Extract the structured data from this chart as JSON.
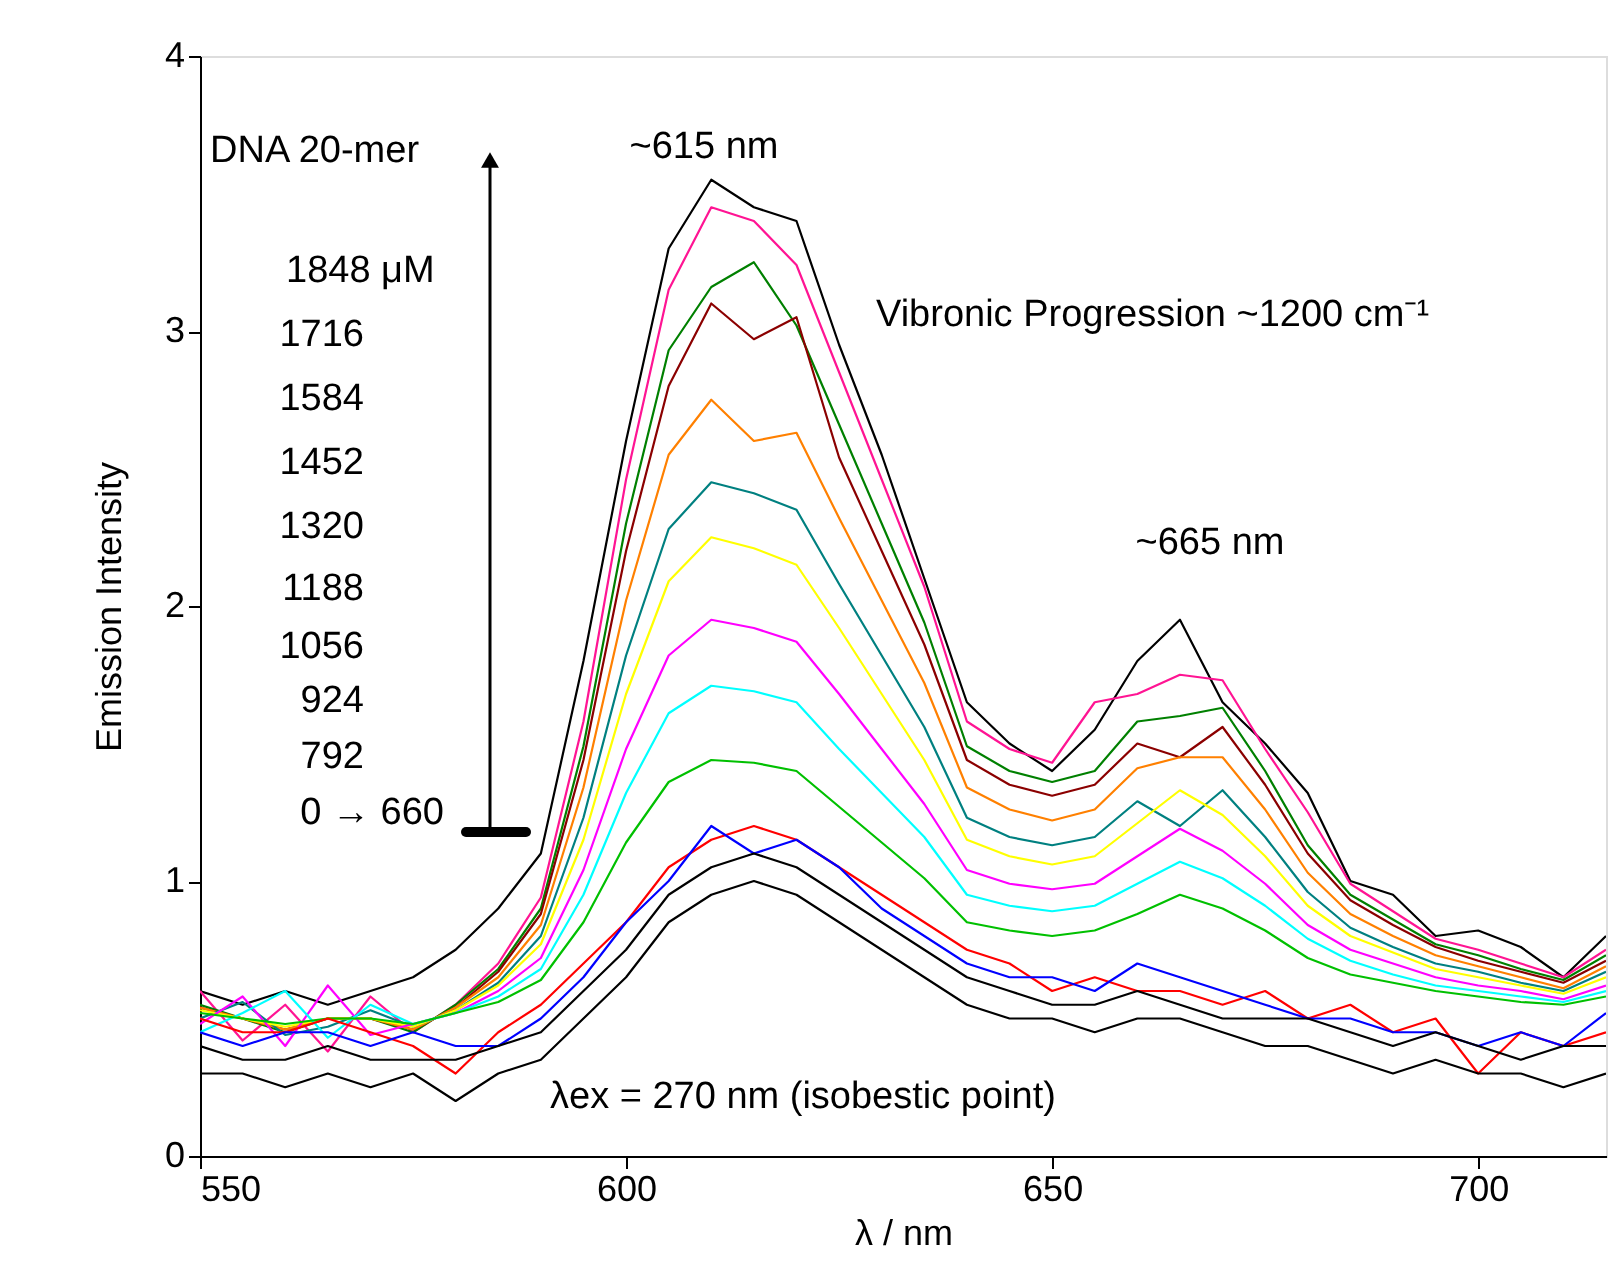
{
  "chart_data": {
    "type": "line",
    "xlabel": "λ / nm",
    "ylabel": "Emission Intensity",
    "xlim": [
      550,
      715
    ],
    "ylim": [
      0,
      4
    ],
    "xticks": [
      550,
      600,
      650,
      700
    ],
    "yticks": [
      0,
      1,
      2,
      3,
      4
    ],
    "grid": false,
    "x": [
      550,
      555,
      560,
      565,
      570,
      575,
      580,
      585,
      590,
      595,
      600,
      605,
      610,
      615,
      620,
      625,
      630,
      635,
      640,
      645,
      650,
      655,
      660,
      665,
      670,
      675,
      680,
      685,
      690,
      695,
      700,
      705,
      710,
      715
    ],
    "series": [
      {
        "color": "#000000",
        "values": [
          0.6,
          0.55,
          0.6,
          0.55,
          0.6,
          0.65,
          0.75,
          0.9,
          1.1,
          1.8,
          2.6,
          3.3,
          3.55,
          3.45,
          3.4,
          2.95,
          2.55,
          2.1,
          1.65,
          1.5,
          1.4,
          1.55,
          1.8,
          1.95,
          1.65,
          1.5,
          1.32,
          1.0,
          0.95,
          0.8,
          0.82,
          0.76,
          0.65,
          0.8
        ]
      },
      {
        "color": "#ff1493",
        "values": [
          0.6,
          0.42,
          0.55,
          0.38,
          0.58,
          0.45,
          0.55,
          0.7,
          0.94,
          1.58,
          2.46,
          3.15,
          3.45,
          3.4,
          3.24,
          2.85,
          2.46,
          2.07,
          1.58,
          1.48,
          1.43,
          1.65,
          1.68,
          1.75,
          1.73,
          1.48,
          1.25,
          0.99,
          0.89,
          0.79,
          0.75,
          0.7,
          0.65,
          0.75
        ]
      },
      {
        "color": "#008000",
        "values": [
          0.55,
          0.5,
          0.45,
          0.5,
          0.5,
          0.45,
          0.55,
          0.68,
          0.9,
          1.49,
          2.3,
          2.93,
          3.16,
          3.25,
          3.02,
          2.66,
          2.3,
          1.94,
          1.49,
          1.4,
          1.36,
          1.4,
          1.58,
          1.6,
          1.63,
          1.4,
          1.13,
          0.95,
          0.86,
          0.77,
          0.73,
          0.68,
          0.64,
          0.73
        ]
      },
      {
        "color": "#8b0000",
        "values": [
          0.54,
          0.5,
          0.46,
          0.5,
          0.5,
          0.46,
          0.54,
          0.67,
          0.88,
          1.44,
          2.2,
          2.8,
          3.1,
          2.97,
          3.05,
          2.54,
          2.2,
          1.86,
          1.44,
          1.35,
          1.31,
          1.35,
          1.5,
          1.45,
          1.56,
          1.35,
          1.1,
          0.93,
          0.84,
          0.76,
          0.71,
          0.67,
          0.63,
          0.71
        ]
      },
      {
        "color": "#ff8000",
        "values": [
          0.54,
          0.5,
          0.46,
          0.5,
          0.5,
          0.46,
          0.54,
          0.65,
          0.84,
          1.34,
          2.02,
          2.55,
          2.75,
          2.6,
          2.63,
          2.32,
          2.02,
          1.72,
          1.34,
          1.26,
          1.22,
          1.26,
          1.41,
          1.45,
          1.45,
          1.26,
          1.03,
          0.88,
          0.8,
          0.73,
          0.69,
          0.65,
          0.61,
          0.69
        ]
      },
      {
        "color": "#008080",
        "values": [
          0.5,
          0.56,
          0.44,
          0.47,
          0.53,
          0.47,
          0.53,
          0.63,
          0.8,
          1.23,
          1.82,
          2.28,
          2.45,
          2.41,
          2.35,
          2.08,
          1.82,
          1.56,
          1.23,
          1.16,
          1.13,
          1.16,
          1.29,
          1.2,
          1.33,
          1.16,
          0.96,
          0.83,
          0.76,
          0.7,
          0.67,
          0.63,
          0.6,
          0.67
        ]
      },
      {
        "color": "#ffff00",
        "values": [
          0.53,
          0.5,
          0.47,
          0.5,
          0.5,
          0.47,
          0.53,
          0.62,
          0.77,
          1.15,
          1.68,
          2.09,
          2.25,
          2.21,
          2.15,
          1.92,
          1.68,
          1.44,
          1.15,
          1.09,
          1.06,
          1.09,
          1.21,
          1.33,
          1.24,
          1.09,
          0.91,
          0.8,
          0.74,
          0.68,
          0.65,
          0.62,
          0.59,
          0.65
        ]
      },
      {
        "color": "#ff00ff",
        "values": [
          0.48,
          0.58,
          0.4,
          0.62,
          0.44,
          0.48,
          0.52,
          0.6,
          0.72,
          1.04,
          1.48,
          1.82,
          1.95,
          1.92,
          1.87,
          1.68,
          1.48,
          1.28,
          1.04,
          0.99,
          0.97,
          0.99,
          1.09,
          1.19,
          1.11,
          0.99,
          0.84,
          0.75,
          0.7,
          0.65,
          0.62,
          0.6,
          0.57,
          0.62
        ]
      },
      {
        "color": "#00ffff",
        "values": [
          0.45,
          0.52,
          0.6,
          0.43,
          0.55,
          0.48,
          0.52,
          0.58,
          0.68,
          0.95,
          1.32,
          1.61,
          1.71,
          1.69,
          1.65,
          1.48,
          1.32,
          1.16,
          0.95,
          0.91,
          0.89,
          0.91,
          0.99,
          1.07,
          1.01,
          0.91,
          0.79,
          0.71,
          0.66,
          0.62,
          0.6,
          0.58,
          0.56,
          0.6
        ]
      },
      {
        "color": "#00c000",
        "values": [
          0.52,
          0.5,
          0.48,
          0.5,
          0.5,
          0.48,
          0.52,
          0.56,
          0.64,
          0.85,
          1.14,
          1.36,
          1.44,
          1.43,
          1.4,
          1.27,
          1.14,
          1.01,
          0.85,
          0.82,
          0.8,
          0.82,
          0.88,
          0.95,
          0.9,
          0.82,
          0.72,
          0.66,
          0.63,
          0.6,
          0.58,
          0.56,
          0.55,
          0.58
        ]
      },
      {
        "color": "#ff0000",
        "values": [
          0.5,
          0.45,
          0.45,
          0.5,
          0.45,
          0.4,
          0.3,
          0.45,
          0.55,
          0.7,
          0.85,
          1.05,
          1.15,
          1.2,
          1.15,
          1.05,
          0.95,
          0.85,
          0.75,
          0.7,
          0.6,
          0.65,
          0.6,
          0.6,
          0.55,
          0.6,
          0.5,
          0.55,
          0.45,
          0.5,
          0.3,
          0.45,
          0.4,
          0.45
        ]
      },
      {
        "color": "#0000ff",
        "values": [
          0.45,
          0.4,
          0.45,
          0.45,
          0.4,
          0.45,
          0.4,
          0.4,
          0.5,
          0.65,
          0.85,
          1.0,
          1.2,
          1.1,
          1.15,
          1.05,
          0.9,
          0.8,
          0.7,
          0.65,
          0.65,
          0.6,
          0.7,
          0.65,
          0.6,
          0.55,
          0.5,
          0.5,
          0.45,
          0.45,
          0.4,
          0.45,
          0.4,
          0.52
        ]
      },
      {
        "color": "#000000",
        "values": [
          0.4,
          0.35,
          0.35,
          0.4,
          0.35,
          0.35,
          0.35,
          0.4,
          0.45,
          0.6,
          0.75,
          0.95,
          1.05,
          1.1,
          1.05,
          0.95,
          0.85,
          0.75,
          0.65,
          0.6,
          0.55,
          0.55,
          0.6,
          0.55,
          0.5,
          0.5,
          0.5,
          0.45,
          0.4,
          0.45,
          0.4,
          0.35,
          0.4,
          0.4
        ]
      },
      {
        "color": "#000000",
        "values": [
          0.3,
          0.3,
          0.25,
          0.3,
          0.25,
          0.3,
          0.2,
          0.3,
          0.35,
          0.5,
          0.65,
          0.85,
          0.95,
          1.0,
          0.95,
          0.85,
          0.75,
          0.65,
          0.55,
          0.5,
          0.5,
          0.45,
          0.5,
          0.5,
          0.45,
          0.4,
          0.4,
          0.35,
          0.3,
          0.35,
          0.3,
          0.3,
          0.25,
          0.3
        ]
      }
    ],
    "annotations": [
      "DNA 20-mer",
      "1848 μM",
      "1716",
      "1584",
      "1452",
      "1320",
      "1188",
      "1056",
      "924",
      "792",
      "0 → 660",
      "Vibronic Progression  ~1200 cm⁻¹",
      "λex = 270 nm (isobestic point)",
      "~615 nm",
      "~665 nm"
    ]
  }
}
